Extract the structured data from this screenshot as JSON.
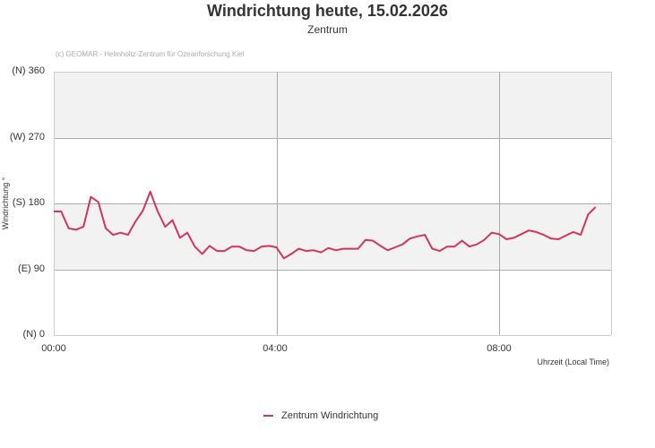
{
  "header": {
    "title": "Windrichtung heute, 15.02.2026",
    "subtitle": "Zentrum",
    "credit": "(c) GEOMAR - Helmholtz-Zentrum für Ozeanforschung Kiel"
  },
  "axes": {
    "ylabel": "Windrichtung °",
    "xlabel": "Uhrzeit (Local Time)",
    "yticks": [
      {
        "value": 360,
        "label": "(N) 360"
      },
      {
        "value": 270,
        "label": "(W) 270"
      },
      {
        "value": 180,
        "label": "(S) 180"
      },
      {
        "value": 90,
        "label": "(E) 90"
      },
      {
        "value": 0,
        "label": "(N) 0"
      }
    ],
    "xticks": [
      {
        "hour": 0,
        "label": "00:00"
      },
      {
        "hour": 4,
        "label": "04:00"
      },
      {
        "hour": 8,
        "label": "08:00"
      }
    ]
  },
  "legend": {
    "label": "Zentrum Windrichtung"
  },
  "colors": {
    "series": "#d0355e",
    "band": "#f2f2f2",
    "grid": "#aaaaaa",
    "text": "#333333"
  },
  "chart_data": {
    "type": "line",
    "title": "Windrichtung heute, 15.02.2026",
    "subtitle": "Zentrum",
    "xlabel": "Uhrzeit (Local Time)",
    "ylabel": "Windrichtung °",
    "ylim": [
      0,
      360
    ],
    "xlim_hours": [
      0,
      10
    ],
    "x_step_minutes": 8,
    "x_tick_labels": [
      "00:00",
      "04:00",
      "08:00"
    ],
    "y_tick_labels": [
      "(N) 0",
      "(E) 90",
      "(S) 180",
      "(W) 270",
      "(N) 360"
    ],
    "plot_bands": [
      {
        "from": 0,
        "to": 90,
        "color": "#ffffff"
      },
      {
        "from": 90,
        "to": 180,
        "color": "#f2f2f2"
      },
      {
        "from": 180,
        "to": 270,
        "color": "#ffffff"
      },
      {
        "from": 270,
        "to": 360,
        "color": "#f2f2f2"
      }
    ],
    "legend_position": "bottom",
    "grid": true,
    "series": [
      {
        "name": "Zentrum Windrichtung",
        "color": "#d0355e",
        "values": [
          169,
          169,
          146,
          144,
          148,
          189,
          182,
          146,
          137,
          140,
          137,
          155,
          170,
          196,
          169,
          148,
          157,
          133,
          140,
          121,
          111,
          122,
          115,
          115,
          121,
          121,
          116,
          115,
          121,
          122,
          120,
          105,
          111,
          118,
          115,
          116,
          113,
          119,
          116,
          118,
          118,
          118,
          130,
          129,
          122,
          116,
          120,
          124,
          132,
          135,
          137,
          118,
          115,
          121,
          121,
          129,
          121,
          124,
          130,
          140,
          138,
          131,
          133,
          138,
          143,
          141,
          137,
          132,
          131,
          136,
          141,
          137,
          165,
          175
        ]
      }
    ]
  }
}
